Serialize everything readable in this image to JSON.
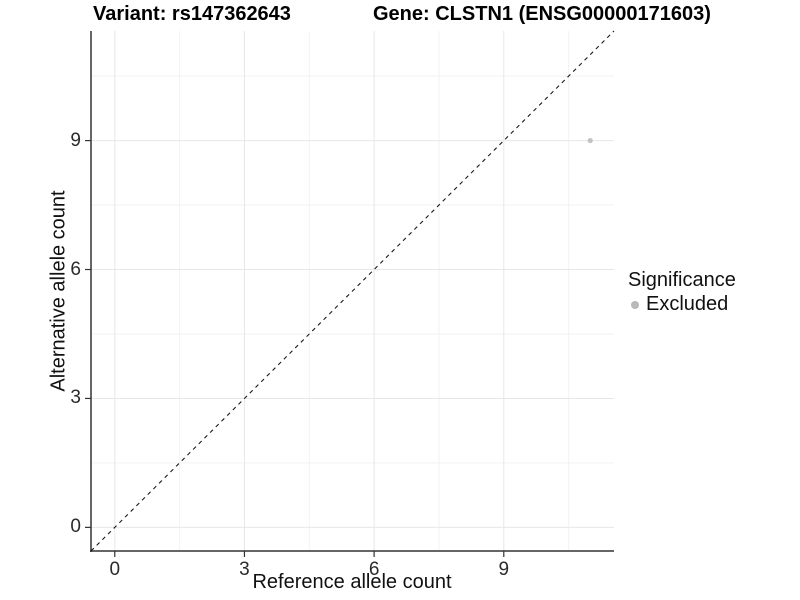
{
  "figure": {
    "title_left": "Variant: rs147362643",
    "title_right": "Gene: CLSTN1 (ENSG00000171603)"
  },
  "chart_data": {
    "type": "scatter",
    "title": "Variant: rs147362643    Gene: CLSTN1 (ENSG00000171603)",
    "xlabel": "Reference allele count",
    "ylabel": "Alternative allele count",
    "xlim": [
      -0.55,
      11.55
    ],
    "ylim": [
      -0.55,
      11.55
    ],
    "x_ticks": [
      0,
      3,
      6,
      9
    ],
    "y_ticks": [
      0,
      3,
      6,
      9
    ],
    "x_minor_ticks": [
      1.5,
      4.5,
      7.5,
      10.5
    ],
    "y_minor_ticks": [
      1.5,
      4.5,
      7.5,
      10.5
    ],
    "grid": "major+minor",
    "series": [
      {
        "name": "Excluded",
        "marker": "dot",
        "color": "#c2c2c2",
        "points": [
          {
            "x": 11,
            "y": 9
          }
        ]
      }
    ],
    "reference_line": {
      "type": "identity",
      "style": "dashed",
      "from": [
        -0.55,
        -0.55
      ],
      "to": [
        11.55,
        11.55
      ]
    },
    "legend": {
      "title": "Significance",
      "position": "right",
      "items": [
        {
          "label": "Excluded",
          "color": "#b9b9b9",
          "marker": "dot"
        }
      ]
    },
    "colors": {
      "background": "#ffffff",
      "grid_major": "#e7e7e7",
      "grid_minor": "#f2f2f2",
      "axis_line": "#333333",
      "tick_mark": "#333333",
      "dashed_line": "#1a1a1a",
      "point": "#c2c2c2"
    }
  }
}
